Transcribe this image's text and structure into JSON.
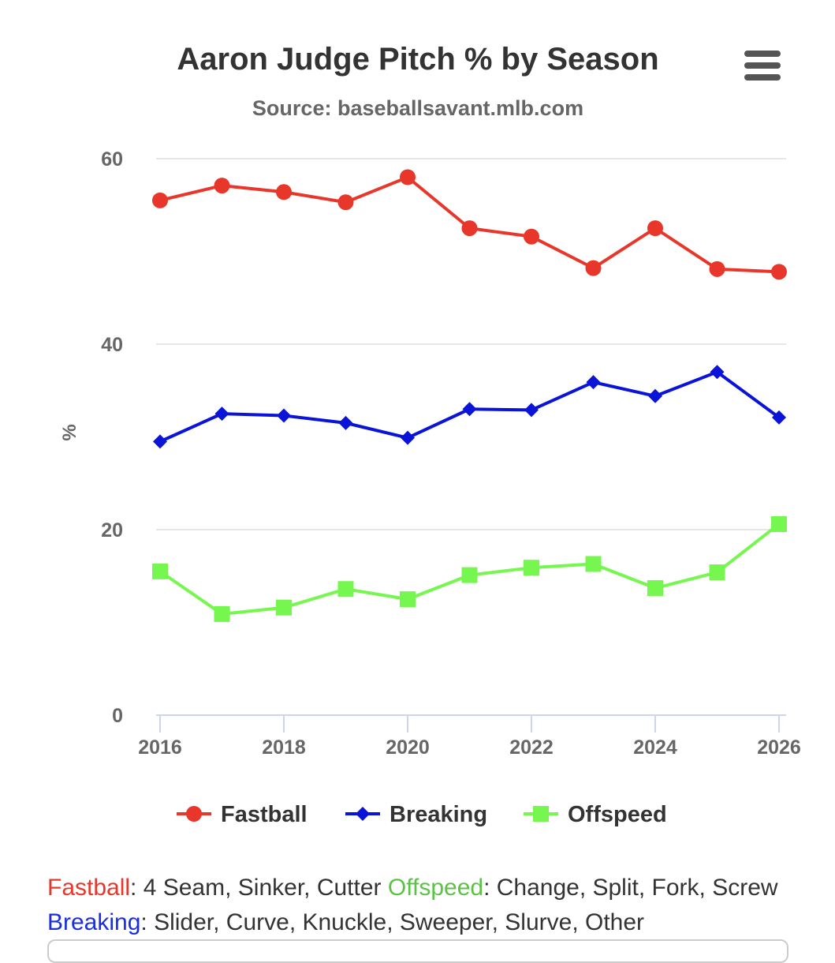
{
  "menu": {
    "icon": "hamburger-menu-icon"
  },
  "chart_data": {
    "type": "line",
    "title": "Aaron Judge Pitch % by Season",
    "subtitle": "Source: baseballsavant.mlb.com",
    "ylabel": "%",
    "xlabel": "",
    "ylim": [
      0,
      60
    ],
    "yticks": [
      0,
      20,
      40,
      60
    ],
    "xlim": [
      2016,
      2026
    ],
    "xticks": [
      2016,
      2018,
      2020,
      2022,
      2024,
      2026
    ],
    "grid": true,
    "legend_position": "bottom",
    "x": [
      2016,
      2017,
      2018,
      2019,
      2020,
      2021,
      2022,
      2023,
      2024,
      2025,
      2026
    ],
    "series": [
      {
        "name": "Fastball",
        "color": "#e8372a",
        "marker": "circle",
        "values": [
          55.5,
          57.1,
          56.4,
          55.3,
          58.0,
          52.5,
          51.6,
          48.2,
          52.5,
          48.1,
          47.8
        ]
      },
      {
        "name": "Breaking",
        "color": "#0a14d8",
        "marker": "diamond",
        "values": [
          29.5,
          32.5,
          32.3,
          31.5,
          29.9,
          33.0,
          32.9,
          35.9,
          34.4,
          37.0,
          32.1
        ]
      },
      {
        "name": "Offspeed",
        "color": "#76f74f",
        "marker": "square",
        "values": [
          15.5,
          10.9,
          11.6,
          13.6,
          12.5,
          15.1,
          15.9,
          16.3,
          13.7,
          15.4,
          20.6
        ]
      }
    ]
  },
  "caption": {
    "parts": [
      {
        "text": "Fastball",
        "color": "#e8372a"
      },
      {
        "text": ": 4 Seam, Sinker, Cutter ",
        "color": "#333333"
      },
      {
        "text": "Offspeed",
        "color": "#5cc246"
      },
      {
        "text": ": Change, Split, Fork, Screw ",
        "color": "#333333"
      },
      {
        "text": "Breaking",
        "color": "#1a2ee0"
      },
      {
        "text": ": Slider, Curve, Knuckle, Sweeper, Slurve, Other",
        "color": "#333333"
      }
    ]
  }
}
